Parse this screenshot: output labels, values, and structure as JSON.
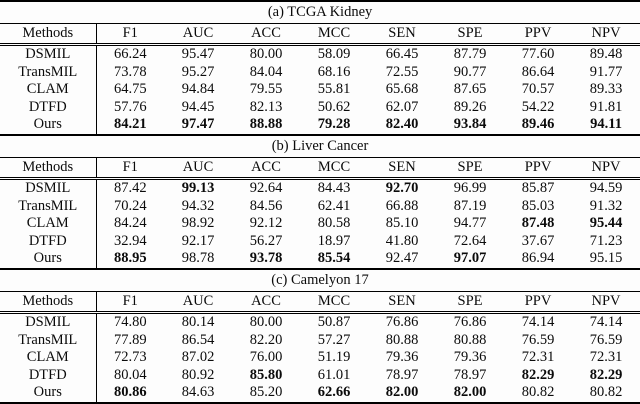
{
  "page": {
    "background_color": "#fdfdfd",
    "text_color": "#0b0b0b",
    "rule_color": "#000000"
  },
  "tables": [
    {
      "caption": "(a) TCGA Kidney",
      "columns": [
        "Methods",
        "F1",
        "AUC",
        "ACC",
        "MCC",
        "SEN",
        "SPE",
        "PPV",
        "NPV"
      ],
      "rows": [
        {
          "method": "DSMIL",
          "values": [
            "66.24",
            "95.47",
            "80.00",
            "58.09",
            "66.45",
            "87.79",
            "77.60",
            "89.48"
          ],
          "bold": [
            false,
            false,
            false,
            false,
            false,
            false,
            false,
            false
          ]
        },
        {
          "method": "TransMIL",
          "values": [
            "73.78",
            "95.27",
            "84.04",
            "68.16",
            "72.55",
            "90.77",
            "86.64",
            "91.77"
          ],
          "bold": [
            false,
            false,
            false,
            false,
            false,
            false,
            false,
            false
          ]
        },
        {
          "method": "CLAM",
          "values": [
            "64.75",
            "94.84",
            "79.55",
            "55.81",
            "65.68",
            "87.65",
            "70.57",
            "89.33"
          ],
          "bold": [
            false,
            false,
            false,
            false,
            false,
            false,
            false,
            false
          ]
        },
        {
          "method": "DTFD",
          "values": [
            "57.76",
            "94.45",
            "82.13",
            "50.62",
            "62.07",
            "89.26",
            "54.22",
            "91.81"
          ],
          "bold": [
            false,
            false,
            false,
            false,
            false,
            false,
            false,
            false
          ]
        },
        {
          "method": "Ours",
          "values": [
            "84.21",
            "97.47",
            "88.88",
            "79.28",
            "82.40",
            "93.84",
            "89.46",
            "94.11"
          ],
          "bold": [
            true,
            true,
            true,
            true,
            true,
            true,
            true,
            true
          ]
        }
      ]
    },
    {
      "caption": "(b) Liver Cancer",
      "columns": [
        "Methods",
        "F1",
        "AUC",
        "ACC",
        "MCC",
        "SEN",
        "SPE",
        "PPV",
        "NPV"
      ],
      "rows": [
        {
          "method": "DSMIL",
          "values": [
            "87.42",
            "99.13",
            "92.64",
            "84.43",
            "92.70",
            "96.99",
            "85.87",
            "94.59"
          ],
          "bold": [
            false,
            true,
            false,
            false,
            true,
            false,
            false,
            false
          ]
        },
        {
          "method": "TransMIL",
          "values": [
            "70.24",
            "94.32",
            "84.56",
            "62.41",
            "66.88",
            "87.19",
            "85.03",
            "91.32"
          ],
          "bold": [
            false,
            false,
            false,
            false,
            false,
            false,
            false,
            false
          ]
        },
        {
          "method": "CLAM",
          "values": [
            "84.24",
            "98.92",
            "92.12",
            "80.58",
            "85.10",
            "94.77",
            "87.48",
            "95.44"
          ],
          "bold": [
            false,
            false,
            false,
            false,
            false,
            false,
            true,
            true
          ]
        },
        {
          "method": "DTFD",
          "values": [
            "32.94",
            "92.17",
            "56.27",
            "18.97",
            "41.80",
            "72.64",
            "37.67",
            "71.23"
          ],
          "bold": [
            false,
            false,
            false,
            false,
            false,
            false,
            false,
            false
          ]
        },
        {
          "method": "Ours",
          "values": [
            "88.95",
            "98.78",
            "93.78",
            "85.54",
            "92.47",
            "97.07",
            "86.94",
            "95.15"
          ],
          "bold": [
            true,
            false,
            true,
            true,
            false,
            true,
            false,
            false
          ]
        }
      ]
    },
    {
      "caption": "(c) Camelyon 17",
      "columns": [
        "Methods",
        "F1",
        "AUC",
        "ACC",
        "MCC",
        "SEN",
        "SPE",
        "PPV",
        "NPV"
      ],
      "rows": [
        {
          "method": "DSMIL",
          "values": [
            "74.80",
            "80.14",
            "80.00",
            "50.87",
            "76.86",
            "76.86",
            "74.14",
            "74.14"
          ],
          "bold": [
            false,
            false,
            false,
            false,
            false,
            false,
            false,
            false
          ]
        },
        {
          "method": "TransMIL",
          "values": [
            "77.89",
            "86.54",
            "82.20",
            "57.27",
            "80.88",
            "80.88",
            "76.59",
            "76.59"
          ],
          "bold": [
            false,
            false,
            false,
            false,
            false,
            false,
            false,
            false
          ]
        },
        {
          "method": "CLAM",
          "values": [
            "72.73",
            "87.02",
            "76.00",
            "51.19",
            "79.36",
            "79.36",
            "72.31",
            "72.31"
          ],
          "bold": [
            false,
            false,
            false,
            false,
            false,
            false,
            false,
            false
          ]
        },
        {
          "method": "DTFD",
          "values": [
            "80.04",
            "80.92",
            "85.80",
            "61.01",
            "78.97",
            "78.97",
            "82.29",
            "82.29"
          ],
          "bold": [
            false,
            false,
            true,
            false,
            false,
            false,
            true,
            true
          ]
        },
        {
          "method": "Ours",
          "values": [
            "80.86",
            "84.63",
            "85.20",
            "62.66",
            "82.00",
            "82.00",
            "80.82",
            "80.82"
          ],
          "bold": [
            true,
            false,
            false,
            true,
            true,
            true,
            false,
            false
          ]
        }
      ]
    }
  ]
}
